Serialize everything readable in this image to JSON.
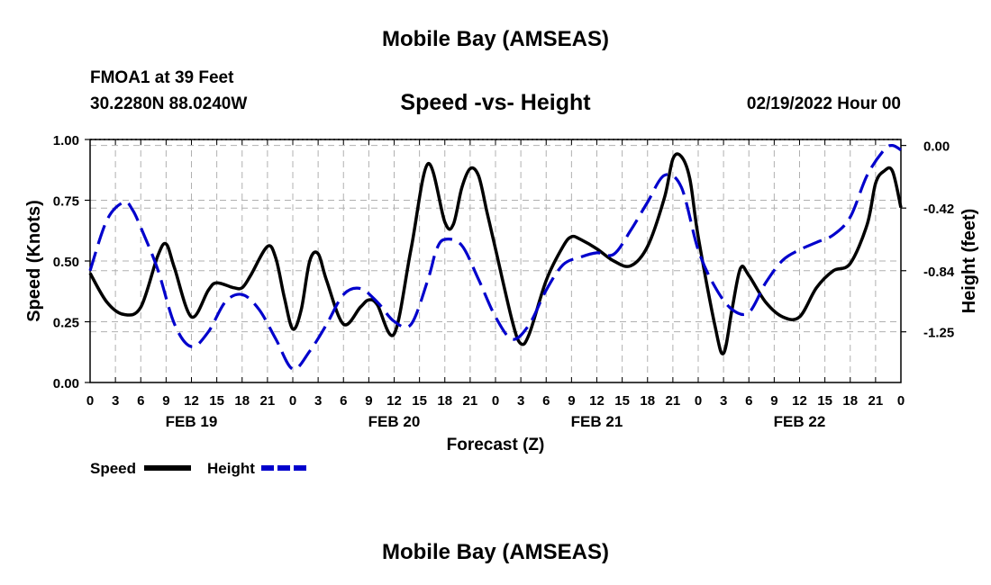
{
  "header": {
    "title": "Mobile Bay (AMSEAS)",
    "station": "FMOA1 at 39 Feet",
    "coords": "30.2280N  88.0240W",
    "chart_title": "Speed -vs- Height",
    "date": "02/19/2022 Hour 00"
  },
  "footer": {
    "title": "Mobile Bay (AMSEAS)"
  },
  "colors": {
    "speed": "#000000",
    "height": "#0000cc",
    "grid": "#b0b0b0"
  },
  "chart_data": {
    "type": "line",
    "title": "Speed -vs- Height",
    "xlabel": "Forecast (Z)",
    "ylabel": "Speed (Knots)",
    "y2label": "Height (feet)",
    "x_range": [
      0,
      96
    ],
    "x_ticks": [
      0,
      3,
      6,
      9,
      12,
      15,
      18,
      21,
      24,
      27,
      30,
      33,
      36,
      39,
      42,
      45,
      48,
      51,
      54,
      57,
      60,
      63,
      66,
      69,
      72,
      75,
      78,
      81,
      84,
      87,
      90,
      93,
      96
    ],
    "x_tick_labels": [
      "0",
      "3",
      "6",
      "9",
      "12",
      "15",
      "18",
      "21",
      "0",
      "3",
      "6",
      "9",
      "12",
      "15",
      "18",
      "21",
      "0",
      "3",
      "6",
      "9",
      "12",
      "15",
      "18",
      "21",
      "0",
      "3",
      "6",
      "9",
      "12",
      "15",
      "18",
      "21",
      "0"
    ],
    "day_labels": [
      {
        "label": "FEB 19",
        "x": 12
      },
      {
        "label": "FEB 20",
        "x": 36
      },
      {
        "label": "FEB 21",
        "x": 60
      },
      {
        "label": "FEB 22",
        "x": 84
      }
    ],
    "y_left": {
      "range": [
        0,
        1
      ],
      "ticks": [
        0,
        0.25,
        0.5,
        0.75,
        1.0
      ],
      "tick_labels": [
        "0.00",
        "0.25",
        "0.50",
        "0.75",
        "1.00"
      ]
    },
    "y_right": {
      "range": [
        -1.59,
        0.04
      ],
      "ticks": [
        0.0,
        -0.42,
        -0.84,
        -1.25
      ],
      "tick_labels": [
        "0.00",
        "-0.42",
        "-0.84",
        "-1.25"
      ]
    },
    "grid": true,
    "legend": {
      "position": "bottom-left",
      "entries": [
        "Speed",
        "Height"
      ]
    },
    "series": [
      {
        "name": "Speed",
        "axis": "left",
        "style": "solid",
        "x": [
          0,
          2,
          4,
          6,
          8,
          9,
          10,
          12,
          14,
          15,
          17,
          18,
          19,
          21,
          22,
          23,
          24,
          25,
          26,
          27,
          28,
          30,
          32,
          33,
          34,
          36,
          38,
          40,
          42,
          43,
          44,
          45,
          46,
          47,
          48,
          50,
          51,
          52,
          54,
          56,
          57,
          58,
          60,
          62,
          64,
          66,
          68,
          69,
          70,
          71,
          72,
          74,
          75,
          76,
          77,
          78,
          80,
          82,
          84,
          86,
          88,
          90,
          92,
          93,
          94,
          95,
          96
        ],
        "values": [
          0.45,
          0.33,
          0.28,
          0.31,
          0.52,
          0.57,
          0.47,
          0.27,
          0.38,
          0.41,
          0.39,
          0.39,
          0.44,
          0.56,
          0.51,
          0.35,
          0.22,
          0.3,
          0.5,
          0.53,
          0.42,
          0.24,
          0.31,
          0.34,
          0.32,
          0.2,
          0.55,
          0.9,
          0.66,
          0.65,
          0.8,
          0.88,
          0.85,
          0.7,
          0.55,
          0.25,
          0.16,
          0.2,
          0.42,
          0.56,
          0.6,
          0.59,
          0.55,
          0.5,
          0.48,
          0.56,
          0.76,
          0.92,
          0.93,
          0.84,
          0.6,
          0.23,
          0.12,
          0.3,
          0.47,
          0.44,
          0.33,
          0.27,
          0.27,
          0.39,
          0.46,
          0.49,
          0.65,
          0.82,
          0.87,
          0.87,
          0.72
        ]
      },
      {
        "name": "Height",
        "axis": "right",
        "style": "dashed",
        "x": [
          0,
          2,
          4,
          5,
          6,
          8,
          10,
          12,
          14,
          16,
          18,
          20,
          22,
          24,
          26,
          28,
          30,
          32,
          34,
          36,
          38,
          40,
          41,
          42,
          44,
          46,
          48,
          50,
          52,
          54,
          56,
          58,
          60,
          62,
          64,
          66,
          68,
          70,
          72,
          74,
          76,
          78,
          80,
          82,
          84,
          86,
          88,
          90,
          92,
          94,
          95,
          96
        ],
        "values": [
          -0.84,
          -0.5,
          -0.38,
          -0.43,
          -0.55,
          -0.83,
          -1.2,
          -1.35,
          -1.25,
          -1.05,
          -1.0,
          -1.1,
          -1.3,
          -1.5,
          -1.38,
          -1.2,
          -1.0,
          -0.96,
          -1.05,
          -1.18,
          -1.2,
          -0.9,
          -0.7,
          -0.63,
          -0.67,
          -0.9,
          -1.15,
          -1.3,
          -1.2,
          -0.97,
          -0.8,
          -0.75,
          -0.72,
          -0.73,
          -0.57,
          -0.38,
          -0.2,
          -0.28,
          -0.7,
          -0.95,
          -1.1,
          -1.12,
          -0.92,
          -0.77,
          -0.7,
          -0.65,
          -0.6,
          -0.48,
          -0.2,
          -0.03,
          0.0,
          -0.03
        ]
      }
    ]
  }
}
